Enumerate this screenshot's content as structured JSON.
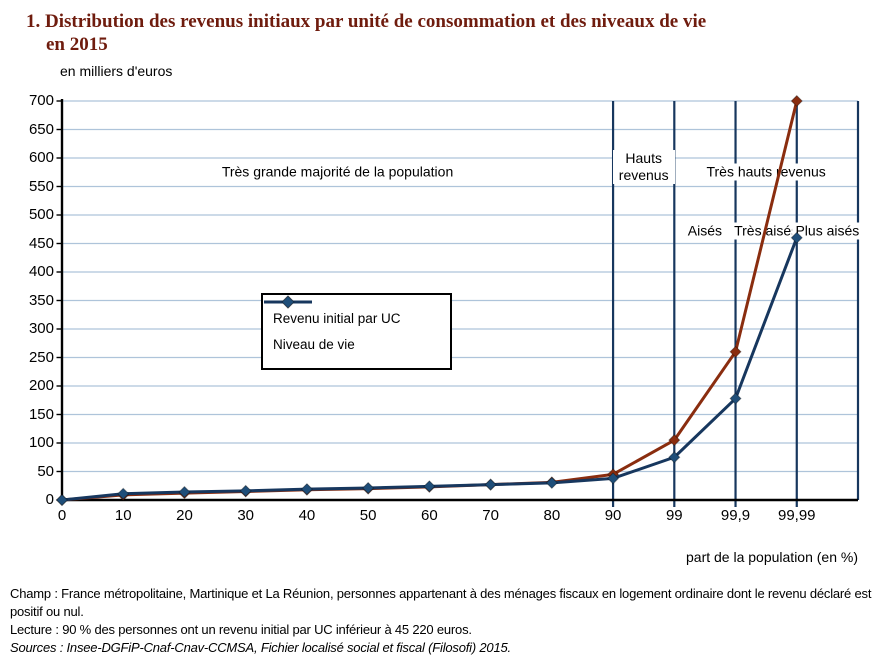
{
  "title": {
    "line1": "1. Distribution des revenus initiaux par unité de consommation et des niveaux de vie",
    "line2": "en 2015"
  },
  "y_axis_unit": "en milliers d'euros",
  "x_axis_label": "part de la population (en %)",
  "chart_data": {
    "type": "line",
    "title": "Distribution des revenus initiaux par unité de consommation et des niveaux de vie en 2015",
    "xlabel": "part de la population (en %)",
    "ylabel": "en milliers d'euros",
    "categories": [
      "0",
      "10",
      "20",
      "30",
      "40",
      "50",
      "60",
      "70",
      "80",
      "90",
      "99",
      "99,9",
      "99,99"
    ],
    "series": [
      {
        "name": "Revenu initial par UC",
        "color": "#8a2d0f",
        "marker_color": "#8a2d0f",
        "values": [
          0,
          9,
          12,
          15,
          18,
          20,
          23,
          27,
          31,
          45,
          105,
          260,
          700
        ]
      },
      {
        "name": "Niveau de vie",
        "color": "#17375e",
        "marker_color": "#1f4e79",
        "values": [
          0,
          11,
          14,
          16,
          19,
          21,
          24,
          27,
          30,
          38,
          75,
          178,
          460
        ]
      }
    ],
    "ylim": [
      0,
      700
    ],
    "y_tick_step": 50,
    "grid": true,
    "legend_position": "inside-center-left",
    "separators_at_category_indices": [
      9,
      10,
      11,
      12
    ],
    "zones": [
      {
        "label": "Très grande majorité de la population",
        "from": 0,
        "to": 9,
        "row": "top"
      },
      {
        "label": "Hauts revenus",
        "from": 9,
        "to": 10,
        "row": "top",
        "two_line": true
      },
      {
        "label": "Très hauts revenus",
        "from": 10,
        "to": 13,
        "row": "top"
      },
      {
        "label": "Aisés",
        "from": 10,
        "to": 11,
        "row": "mid"
      },
      {
        "label": "Très aisés",
        "from": 11,
        "to": 12,
        "row": "mid"
      },
      {
        "label": "Plus aisés",
        "from": 12,
        "to": 13,
        "row": "mid"
      }
    ]
  },
  "footer": {
    "champ": "Champ : France métropolitaine, Martinique et La Réunion, personnes appartenant à des ménages fiscaux en logement ordinaire dont le revenu déclaré est positif ou nul.",
    "lecture": "Lecture : 90 % des personnes ont un revenu initial par UC inférieur à 45 220 euros.",
    "sources": "Sources :  Insee-DGFiP-Cnaf-Cnav-CCMSA, Fichier localisé social et fiscal (Filosofi) 2015."
  },
  "colors": {
    "title_text": "#6f1c0e",
    "grid": "#aec4da",
    "separator": "#17375e",
    "axis": "#000000"
  }
}
